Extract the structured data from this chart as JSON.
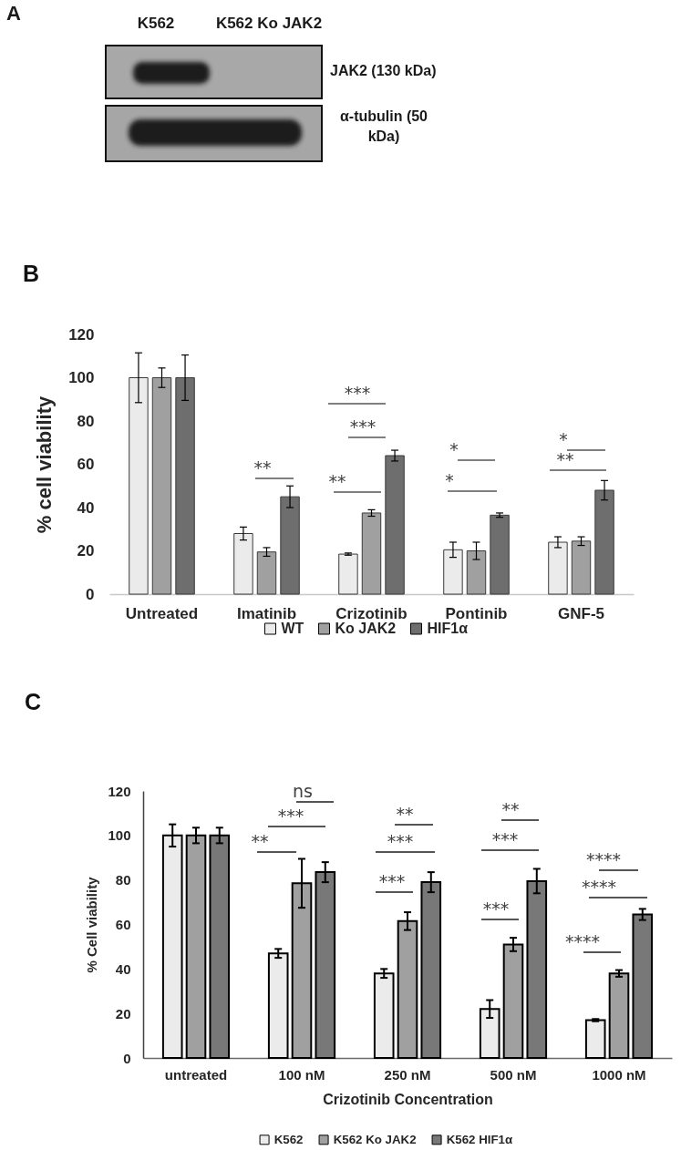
{
  "chart_data": [
    {
      "type": "other",
      "title": "A",
      "annotations": [
        "K562",
        "K562 Ko JAK2",
        "JAK2 (130 kDa)",
        "α-tubulin (50 kDa)"
      ]
    },
    {
      "type": "bar",
      "title": "B",
      "ylabel": "% cell viability",
      "categories": [
        "Untreated",
        "Imatinib",
        "Crizotinib",
        "Pontinib",
        "GNF-5"
      ],
      "series": [
        {
          "name": "WT",
          "color": "#ebebeb",
          "values": [
            100,
            28,
            18.5,
            20.5,
            24
          ],
          "errors": [
            11.5,
            3,
            0.5,
            3.5,
            2.5
          ]
        },
        {
          "name": "Ko JAK2",
          "color": "#a0a0a0",
          "values": [
            100,
            19.5,
            37.5,
            20,
            24.5
          ],
          "errors": [
            4.5,
            2,
            1.5,
            4,
            2
          ]
        },
        {
          "name": "HIF1α",
          "color": "#6e6e6e",
          "values": [
            100,
            45,
            64,
            36.5,
            48
          ],
          "errors": [
            10.5,
            5,
            2.5,
            1,
            4.5
          ]
        }
      ],
      "ylim": [
        0,
        120
      ],
      "yticks": [
        0,
        20,
        40,
        60,
        80,
        100,
        120
      ],
      "legend": "bottom",
      "annotations": [
        "**",
        "***",
        "***",
        "**",
        "*",
        "*",
        "*",
        "**"
      ]
    },
    {
      "type": "bar",
      "title": "C",
      "xlabel": "Crizotinib Concentration",
      "ylabel": "% Cell viability",
      "categories": [
        "untreated",
        "100 nM",
        "250 nM",
        "500 nM",
        "1000 nM"
      ],
      "series": [
        {
          "name": "K562",
          "color": "#ebebeb",
          "values": [
            100,
            47,
            38,
            22,
            17
          ],
          "errors": [
            5,
            2,
            2,
            4,
            0.5
          ]
        },
        {
          "name": "K562 Ko JAK2",
          "color": "#a0a0a0",
          "values": [
            100,
            78.5,
            61.5,
            51,
            38
          ],
          "errors": [
            3.5,
            11,
            4,
            3,
            1.5
          ]
        },
        {
          "name": "K562 HIF1α",
          "color": "#787878",
          "values": [
            100,
            83.5,
            79,
            79.5,
            64.5
          ],
          "errors": [
            3.5,
            4.5,
            4.5,
            5.5,
            2.5
          ]
        }
      ],
      "ylim": [
        0,
        120
      ],
      "yticks": [
        0,
        20,
        40,
        60,
        80,
        100,
        120
      ],
      "legend": "bottom",
      "annotations": [
        "ns",
        "***",
        "**",
        "**",
        "***",
        "***",
        "**",
        "***",
        "***",
        "****",
        "****",
        "****"
      ]
    }
  ]
}
